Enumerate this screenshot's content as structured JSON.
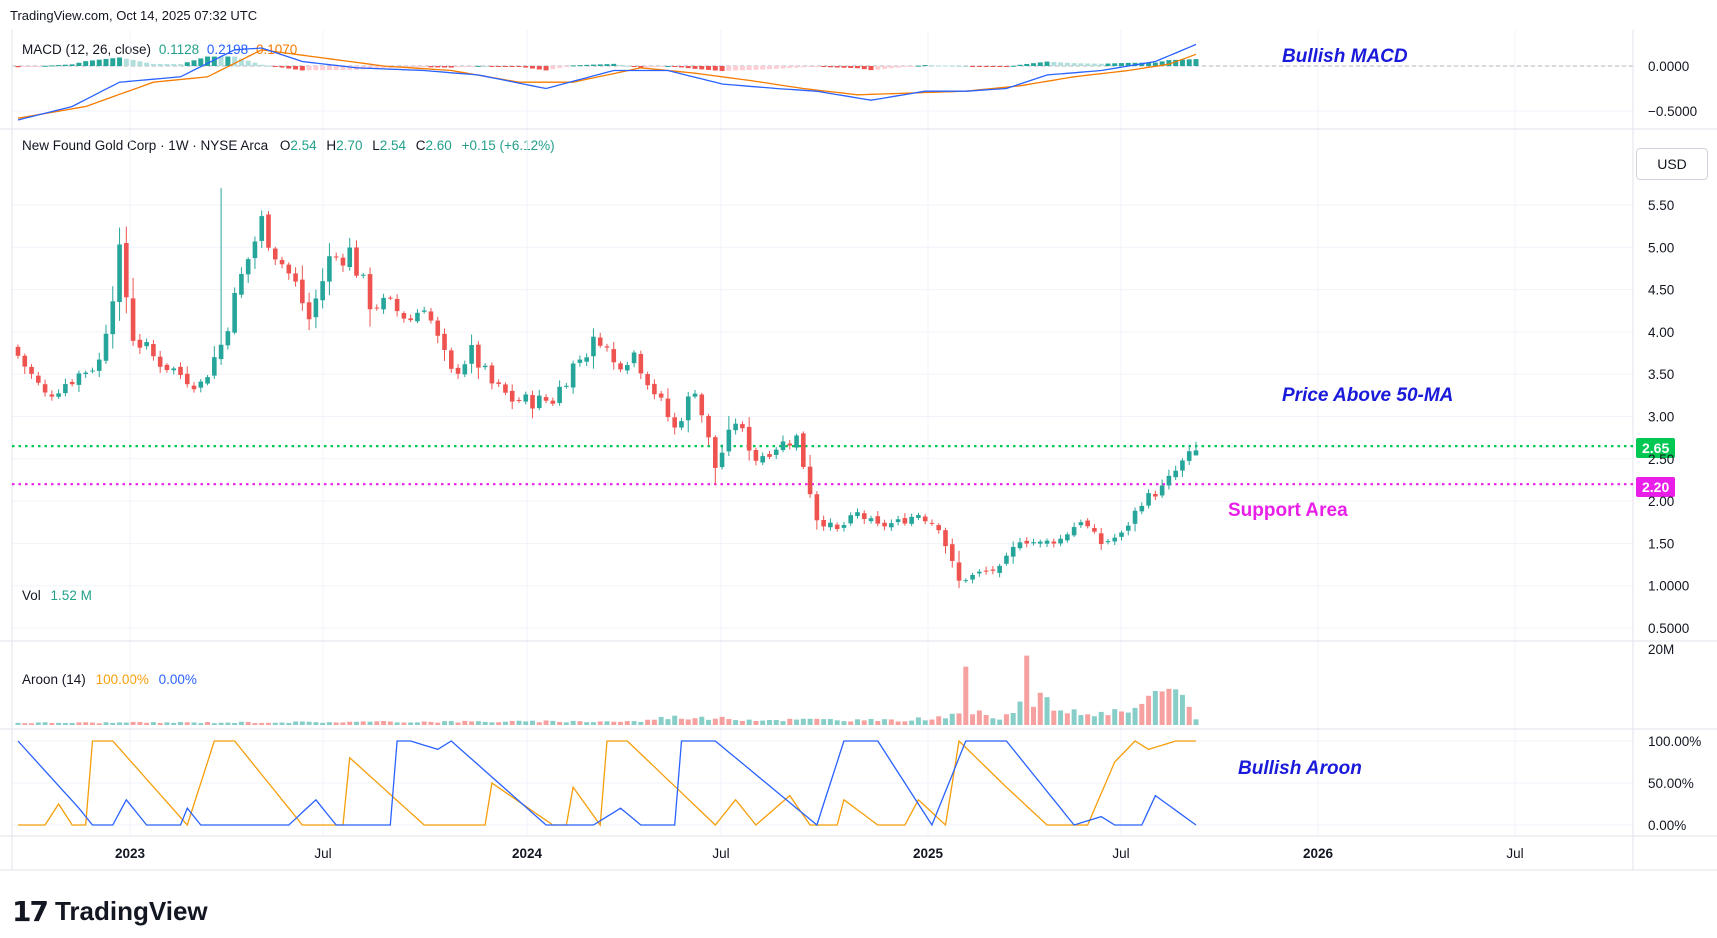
{
  "page_header": "TradingView.com, Oct 14, 2025 07:32 UTC",
  "main_legend": {
    "symbol": "New Found Gold Corp · 1W · NYSE Arca",
    "o_label": "O",
    "o": "2.54",
    "h_label": "H",
    "h": "2.70",
    "l_label": "L",
    "l": "2.54",
    "c_label": "C",
    "c": "2.60",
    "change": "+0.15 (+6.12%)"
  },
  "macd_legend": {
    "name": "MACD (12, 26, close)",
    "v1": "0.1128",
    "v2": "0.2198",
    "v3": "0.1070"
  },
  "vol_legend": {
    "name": "Vol",
    "value": "1.52 M"
  },
  "aroon_legend": {
    "name": "Aroon (14)",
    "up": "100.00%",
    "down": "0.00%"
  },
  "currency_button": "USD",
  "annotations": {
    "macd": "Bullish MACD",
    "price": "Price Above 50-MA",
    "support": "Support Area",
    "aroon": "Bullish Aroon"
  },
  "levels": {
    "resistance": "2.65",
    "support": "2.20"
  },
  "colors": {
    "up": "#26a69a",
    "down": "#ef5350",
    "macd": "#2962ff",
    "signal": "#f57c00",
    "aroon_up": "#f59e0b",
    "aroon_down": "#2962ff",
    "resistance": "#00c853",
    "support": "#e91ee9",
    "annotation_blue": "#1a1adb",
    "annotation_magenta": "#e91ee9"
  },
  "footer_logo": "TradingView",
  "chart_data": {
    "type": "candlestick",
    "timeframe": "1W",
    "x_ticks": [
      "2023",
      "Jul",
      "2024",
      "Jul",
      "2025",
      "Jul",
      "2026",
      "Jul"
    ],
    "price_axis": {
      "ticks": [
        "5.50",
        "5.00",
        "4.50",
        "4.00",
        "3.50",
        "3.00",
        "2.50",
        "2.00",
        "1.50",
        "1.0000",
        "0.5000"
      ],
      "range": [
        0.5,
        5.85
      ]
    },
    "macd_axis": {
      "ticks": [
        "0.0000",
        "−0.5000"
      ],
      "range": [
        -0.75,
        0.28
      ]
    },
    "volume_axis": {
      "ticks": [
        "20M"
      ],
      "range": [
        0,
        22000000
      ]
    },
    "aroon_axis": {
      "ticks": [
        "100.00%",
        "50.00%",
        "0.00%"
      ],
      "range": [
        0,
        100
      ]
    },
    "horizontal_levels": [
      {
        "value": 2.65,
        "label": "2.65"
      },
      {
        "value": 2.2,
        "label": "2.20"
      }
    ],
    "close_anchors": [
      [
        0,
        3.72
      ],
      [
        4,
        3.25
      ],
      [
        8,
        3.45
      ],
      [
        12,
        3.65
      ],
      [
        15,
        4.9
      ],
      [
        17,
        3.95
      ],
      [
        20,
        3.7
      ],
      [
        24,
        3.5
      ],
      [
        27,
        3.38
      ],
      [
        30,
        3.85
      ],
      [
        33,
        4.65
      ],
      [
        36,
        5.3
      ],
      [
        38,
        4.95
      ],
      [
        41,
        4.55
      ],
      [
        43,
        4.15
      ],
      [
        46,
        4.85
      ],
      [
        49,
        4.95
      ],
      [
        52,
        4.35
      ],
      [
        55,
        4.3
      ],
      [
        58,
        4.15
      ],
      [
        60,
        4.35
      ],
      [
        62,
        3.9
      ],
      [
        64,
        3.5
      ],
      [
        67,
        3.75
      ],
      [
        70,
        3.38
      ],
      [
        73,
        3.2
      ],
      [
        76,
        3.18
      ],
      [
        79,
        3.2
      ],
      [
        82,
        3.6
      ],
      [
        86,
        3.95
      ],
      [
        88,
        3.62
      ],
      [
        91,
        3.75
      ],
      [
        94,
        3.3
      ],
      [
        97,
        2.85
      ],
      [
        100,
        3.35
      ],
      [
        103,
        2.4
      ],
      [
        106,
        2.95
      ],
      [
        109,
        2.5
      ],
      [
        112,
        2.65
      ],
      [
        115,
        2.75
      ],
      [
        118,
        1.8
      ],
      [
        121,
        1.65
      ],
      [
        124,
        1.85
      ],
      [
        127,
        1.7
      ],
      [
        130,
        1.75
      ],
      [
        133,
        1.85
      ],
      [
        136,
        1.7
      ],
      [
        139,
        1.05
      ],
      [
        142,
        1.15
      ],
      [
        145,
        1.2
      ],
      [
        148,
        1.55
      ],
      [
        151,
        1.5
      ],
      [
        154,
        1.55
      ],
      [
        157,
        1.78
      ],
      [
        160,
        1.5
      ],
      [
        163,
        1.6
      ],
      [
        166,
        2.0
      ],
      [
        169,
        2.15
      ],
      [
        172,
        2.45
      ],
      [
        174,
        2.6
      ]
    ],
    "volume_anchors": [
      [
        0,
        0.6
      ],
      [
        30,
        0.7
      ],
      [
        60,
        0.9
      ],
      [
        92,
        1.0
      ],
      [
        96,
        2.2
      ],
      [
        110,
        1.4
      ],
      [
        118,
        1.5
      ],
      [
        130,
        1.2
      ],
      [
        135,
        2.0
      ],
      [
        139,
        2.5
      ],
      [
        140,
        16.0
      ],
      [
        141,
        3.5
      ],
      [
        145,
        2.0
      ],
      [
        148,
        6.0
      ],
      [
        149,
        19.0
      ],
      [
        150,
        6.0
      ],
      [
        151,
        7.0
      ],
      [
        155,
        3.5
      ],
      [
        160,
        3.0
      ],
      [
        165,
        4.0
      ],
      [
        169,
        8.5
      ],
      [
        170,
        10.0
      ],
      [
        171,
        8.5
      ],
      [
        172,
        7.5
      ],
      [
        173,
        6.0
      ],
      [
        174,
        1.5
      ]
    ],
    "macd_anchors": [
      [
        0,
        -0.6
      ],
      [
        8,
        -0.45
      ],
      [
        15,
        -0.18
      ],
      [
        24,
        -0.12
      ],
      [
        32,
        0.18
      ],
      [
        36,
        0.2
      ],
      [
        42,
        0.05
      ],
      [
        50,
        -0.02
      ],
      [
        60,
        -0.05
      ],
      [
        68,
        -0.1
      ],
      [
        78,
        -0.25
      ],
      [
        88,
        -0.05
      ],
      [
        96,
        -0.05
      ],
      [
        104,
        -0.2
      ],
      [
        112,
        -0.25
      ],
      [
        118,
        -0.28
      ],
      [
        126,
        -0.38
      ],
      [
        134,
        -0.28
      ],
      [
        140,
        -0.28
      ],
      [
        146,
        -0.25
      ],
      [
        152,
        -0.1
      ],
      [
        160,
        -0.05
      ],
      [
        168,
        0.05
      ],
      [
        174,
        0.24
      ]
    ],
    "signal_anchors": [
      [
        0,
        -0.58
      ],
      [
        10,
        -0.45
      ],
      [
        20,
        -0.18
      ],
      [
        28,
        -0.12
      ],
      [
        36,
        0.18
      ],
      [
        44,
        0.1
      ],
      [
        54,
        0.0
      ],
      [
        64,
        -0.05
      ],
      [
        74,
        -0.18
      ],
      [
        82,
        -0.18
      ],
      [
        92,
        -0.02
      ],
      [
        100,
        -0.08
      ],
      [
        108,
        -0.16
      ],
      [
        116,
        -0.25
      ],
      [
        124,
        -0.32
      ],
      [
        132,
        -0.3
      ],
      [
        140,
        -0.28
      ],
      [
        148,
        -0.22
      ],
      [
        156,
        -0.12
      ],
      [
        164,
        -0.05
      ],
      [
        170,
        0.02
      ],
      [
        174,
        0.13
      ]
    ],
    "aroon_down_anchors": [
      [
        0,
        100
      ],
      [
        9,
        20
      ],
      [
        11,
        0
      ],
      [
        14,
        0
      ],
      [
        16,
        30
      ],
      [
        19,
        0
      ],
      [
        24,
        0
      ],
      [
        25,
        20
      ],
      [
        27,
        0
      ],
      [
        40,
        0
      ],
      [
        44,
        30
      ],
      [
        47,
        0
      ],
      [
        55,
        0
      ],
      [
        56,
        100
      ],
      [
        58,
        100
      ],
      [
        62,
        90
      ],
      [
        64,
        100
      ],
      [
        78,
        0
      ],
      [
        85,
        0
      ],
      [
        89,
        20
      ],
      [
        92,
        0
      ],
      [
        97,
        0
      ],
      [
        98,
        100
      ],
      [
        103,
        100
      ],
      [
        118,
        0
      ],
      [
        122,
        100
      ],
      [
        127,
        100
      ],
      [
        135,
        0
      ],
      [
        140,
        100
      ],
      [
        146,
        100
      ],
      [
        156,
        0
      ],
      [
        160,
        10
      ],
      [
        162,
        0
      ],
      [
        166,
        0
      ],
      [
        168,
        35
      ],
      [
        174,
        0
      ]
    ],
    "aroon_up_anchors": [
      [
        0,
        0
      ],
      [
        4,
        0
      ],
      [
        6,
        25
      ],
      [
        8,
        0
      ],
      [
        10,
        0
      ],
      [
        11,
        100
      ],
      [
        14,
        100
      ],
      [
        25,
        0
      ],
      [
        29,
        100
      ],
      [
        32,
        100
      ],
      [
        42,
        0
      ],
      [
        48,
        0
      ],
      [
        49,
        80
      ],
      [
        60,
        0
      ],
      [
        69,
        0
      ],
      [
        70,
        50
      ],
      [
        79,
        0
      ],
      [
        81,
        0
      ],
      [
        82,
        45
      ],
      [
        86,
        0
      ],
      [
        87,
        100
      ],
      [
        90,
        100
      ],
      [
        103,
        0
      ],
      [
        106,
        30
      ],
      [
        109,
        0
      ],
      [
        114,
        35
      ],
      [
        117,
        0
      ],
      [
        121,
        0
      ],
      [
        122,
        30
      ],
      [
        127,
        0
      ],
      [
        131,
        0
      ],
      [
        133,
        30
      ],
      [
        137,
        0
      ],
      [
        139,
        100
      ],
      [
        146,
        45
      ],
      [
        152,
        0
      ],
      [
        158,
        0
      ],
      [
        162,
        75
      ],
      [
        165,
        100
      ],
      [
        167,
        90
      ],
      [
        171,
        100
      ],
      [
        174,
        100
      ]
    ]
  }
}
